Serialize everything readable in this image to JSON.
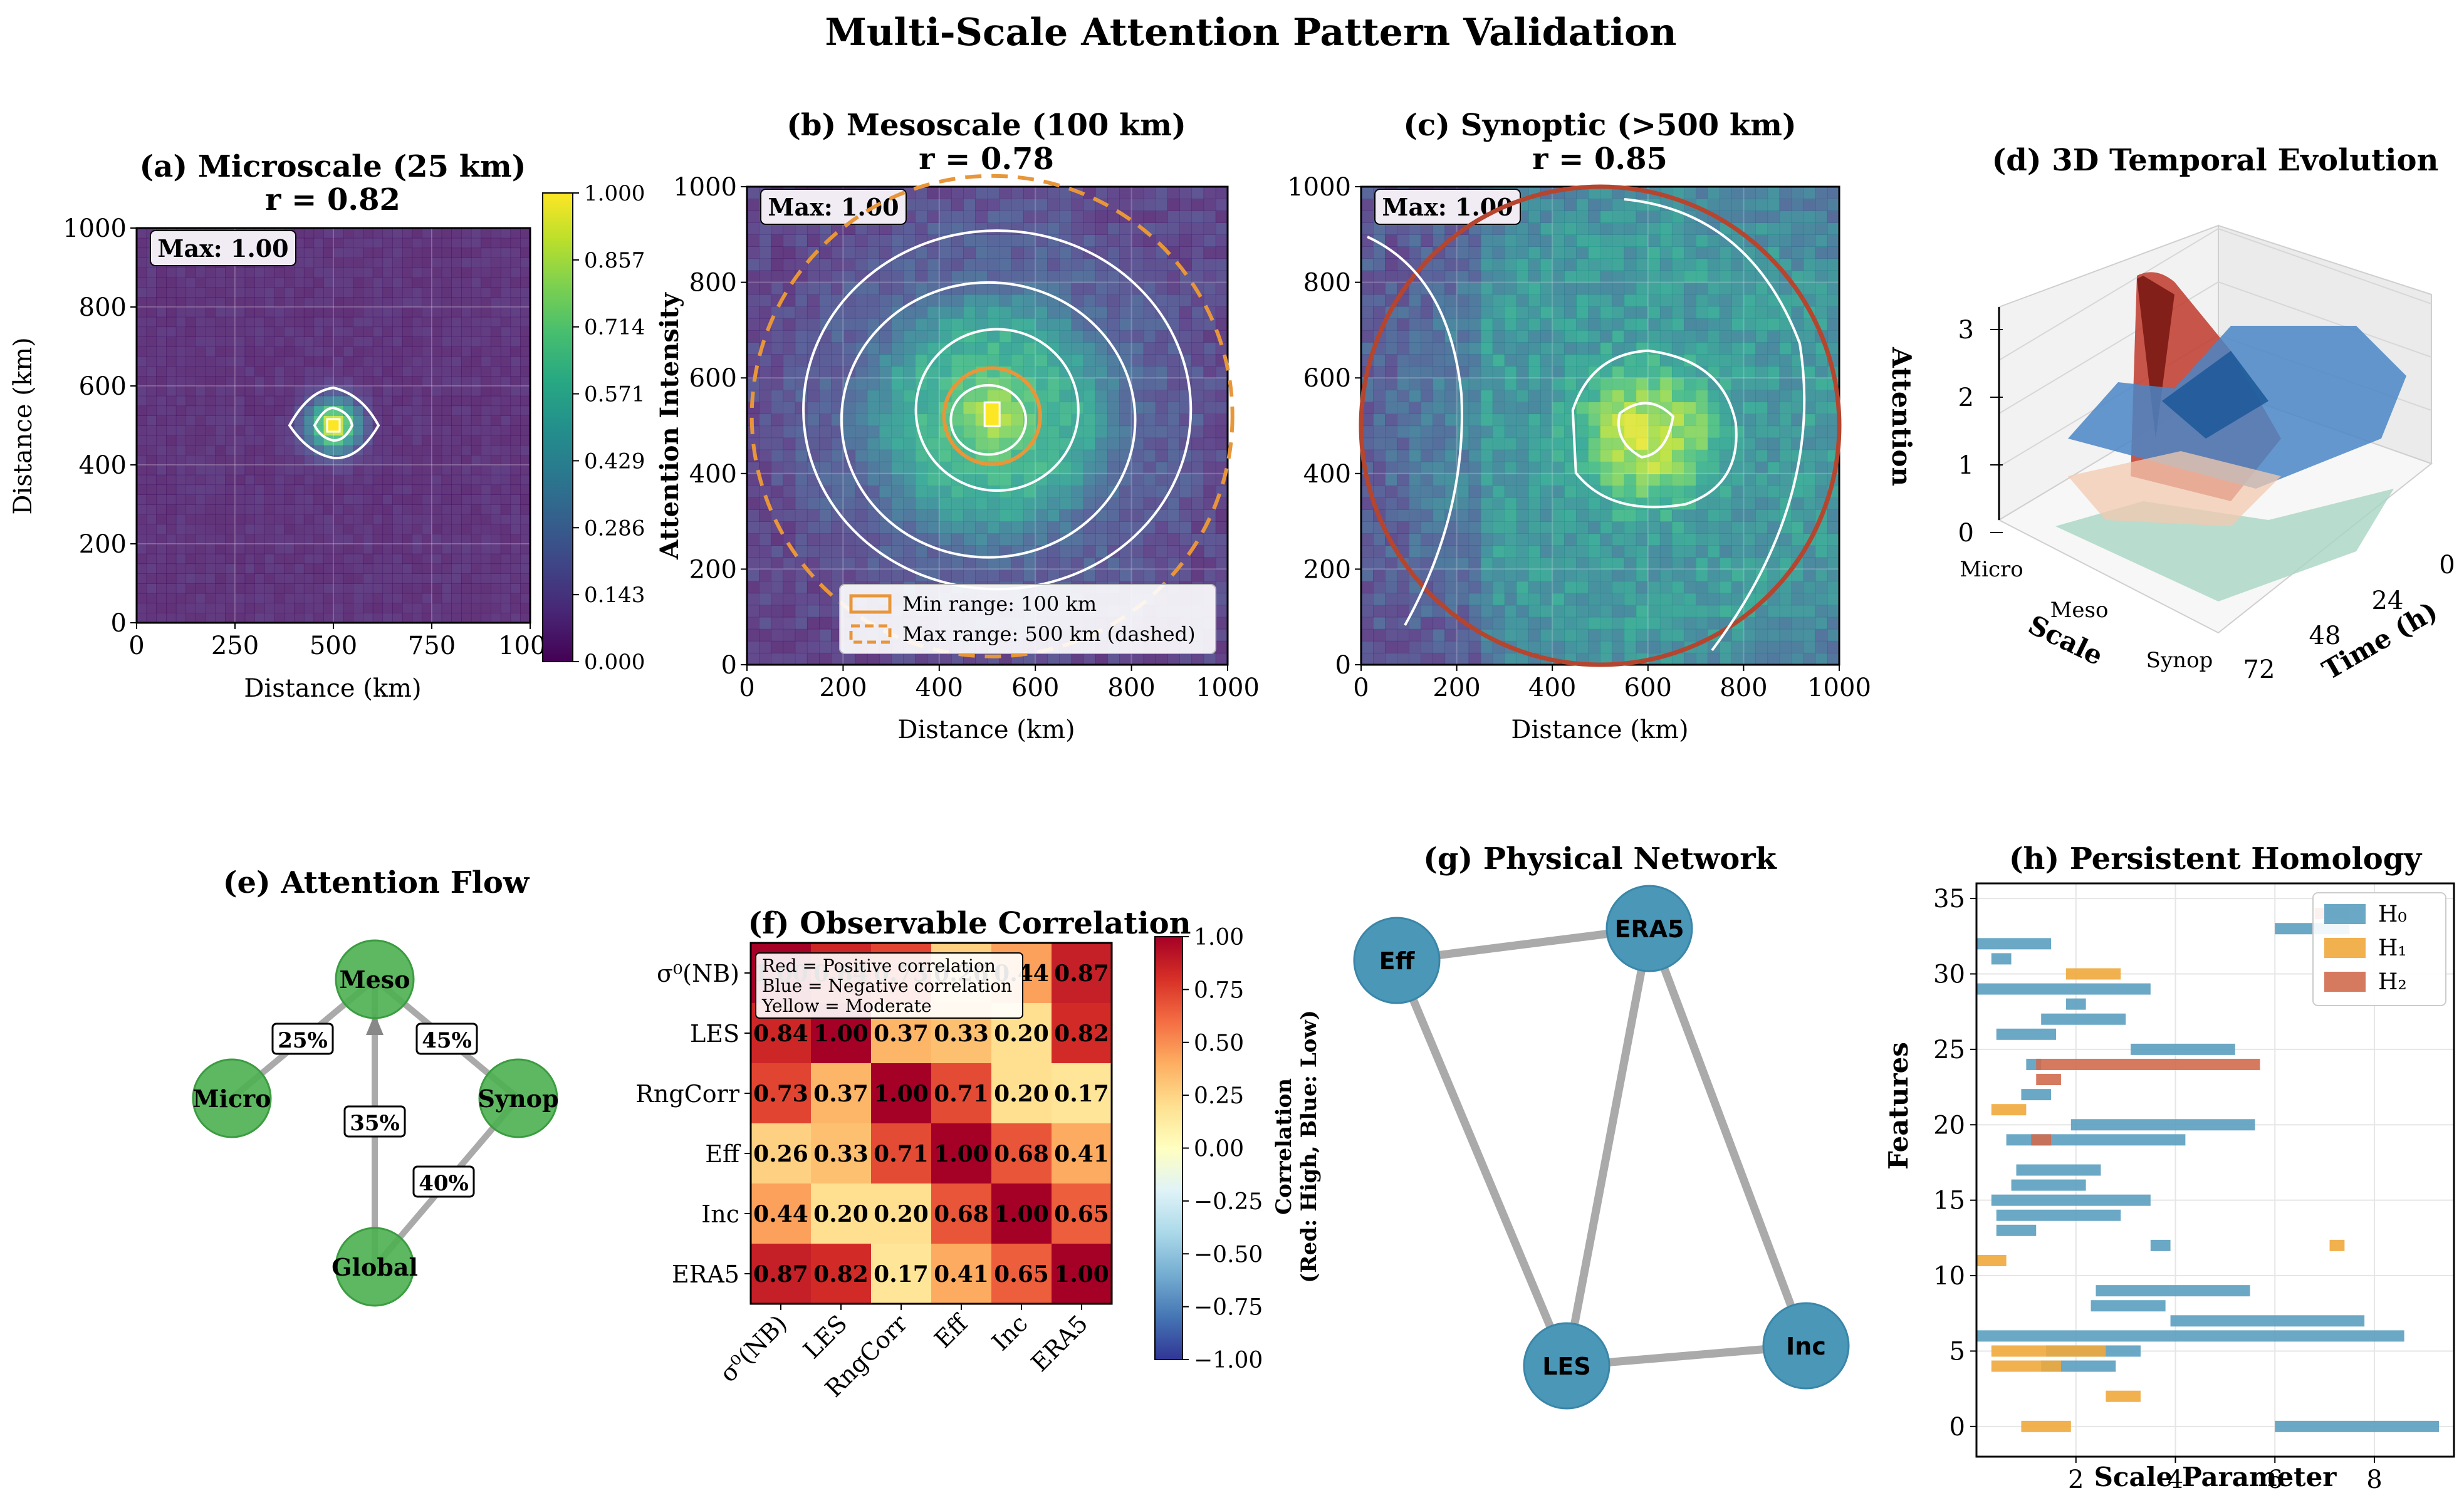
{
  "figure_title": "Multi-Scale Attention Pattern Validation",
  "colors": {
    "green_node": "#4caf50",
    "blue_node": "#4a97b8",
    "orange": "#e8963a",
    "red_circle": "#b5452e",
    "h0": "#5a9fbf",
    "h1": "#f0a83c",
    "h2": "#d06a4e",
    "edge_gray": "#aaaaaa"
  },
  "chart_data": [
    {
      "id": "a",
      "type": "heatmap",
      "title": "(a) Microscale (25 km)",
      "subtitle": "r = 0.82",
      "xlabel": "Distance (km)",
      "ylabel": "Distance (km)",
      "xlim": [
        0,
        1000
      ],
      "ylim": [
        0,
        1000
      ],
      "xticks": [
        "0",
        "250",
        "500",
        "750",
        "1000"
      ],
      "yticks": [
        "0",
        "200",
        "400",
        "600",
        "800",
        "1000"
      ],
      "peak_center": [
        500,
        500
      ],
      "peak_value": 1.0,
      "max_label": "Max: 1.00",
      "colorbar_ticks": [
        "1.000",
        "0.857",
        "0.714",
        "0.571",
        "0.429",
        "0.286",
        "0.143",
        "0.000"
      ],
      "colormap": "viridis",
      "grid": true
    },
    {
      "id": "b",
      "type": "heatmap",
      "title": "(b) Mesoscale (100 km)",
      "subtitle": "r = 0.78",
      "xlabel": "Distance (km)",
      "ylabel": "Attention Intensity",
      "xlim": [
        0,
        1000
      ],
      "ylim": [
        0,
        1000
      ],
      "xticks": [
        "0",
        "200",
        "400",
        "600",
        "800",
        "1000"
      ],
      "yticks": [
        "0",
        "200",
        "400",
        "600",
        "800",
        "1000"
      ],
      "peak_center": [
        510,
        520
      ],
      "max_label": "Max: 1.00",
      "legend": [
        "Min range: 100 km",
        "Max range: 500 km (dashed)"
      ],
      "legend_position": "lower-right",
      "min_range_km": 100,
      "max_range_km": 500,
      "colormap": "viridis"
    },
    {
      "id": "c",
      "type": "heatmap",
      "title": "(c) Synoptic (>500 km)",
      "subtitle": "r = 0.85",
      "xlabel": "Distance (km)",
      "xlim": [
        0,
        1000
      ],
      "ylim": [
        0,
        1000
      ],
      "xticks": [
        "0",
        "200",
        "400",
        "600",
        "800",
        "1000"
      ],
      "yticks": [
        "0",
        "200",
        "400",
        "600",
        "800",
        "1000"
      ],
      "peak_center": [
        600,
        480
      ],
      "max_label": "Max: 1.00",
      "colormap": "viridis"
    },
    {
      "id": "d",
      "type": "area",
      "title": "(d) 3D Temporal Evolution",
      "zlabel": "Attention",
      "xlabel": "Scale",
      "ylabel": "Time (h)",
      "zticks": [
        "0",
        "1",
        "2",
        "3"
      ],
      "scale_ticks": [
        "Micro",
        "Meso",
        "Synop"
      ],
      "time_ticks": [
        "0",
        "24",
        "48",
        "72"
      ]
    },
    {
      "id": "e",
      "type": "network",
      "title": "(e) Attention Flow",
      "nodes": [
        "Meso",
        "Micro",
        "Synop",
        "Global"
      ],
      "edges": [
        {
          "from": "Micro",
          "to": "Meso",
          "label": "25%"
        },
        {
          "from": "Meso",
          "to": "Synop",
          "label": "45%"
        },
        {
          "from": "Global",
          "to": "Meso",
          "label": "35%"
        },
        {
          "from": "Synop",
          "to": "Global",
          "label": "40%"
        }
      ]
    },
    {
      "id": "f",
      "type": "heatmap",
      "title": "(f) Observable Correlation",
      "labels": [
        "σ⁰(NB)",
        "LES",
        "RngCorr",
        "Eff",
        "Inc",
        "ERA5"
      ],
      "matrix": [
        [
          1.0,
          0.84,
          0.73,
          0.26,
          0.44,
          0.87
        ],
        [
          0.84,
          1.0,
          0.37,
          0.33,
          0.2,
          0.82
        ],
        [
          0.73,
          0.37,
          1.0,
          0.71,
          0.2,
          0.17
        ],
        [
          0.26,
          0.33,
          0.71,
          1.0,
          0.68,
          0.41
        ],
        [
          0.44,
          0.2,
          0.2,
          0.68,
          1.0,
          0.65
        ],
        [
          0.87,
          0.82,
          0.17,
          0.41,
          0.65,
          1.0
        ]
      ],
      "note_lines": [
        "Red = Positive correlation",
        "Blue = Negative correlation",
        "Yellow = Moderate"
      ],
      "colorbar_label_1": "Correlation",
      "colorbar_label_2": "(Red: High, Blue: Low)",
      "colorbar_ticks": [
        "1.00",
        "0.75",
        "0.50",
        "0.25",
        "0.00",
        "−0.25",
        "−0.50",
        "−0.75",
        "−1.00"
      ],
      "clim": [
        -1,
        1
      ]
    },
    {
      "id": "g",
      "type": "network",
      "title": "(g) Physical Network",
      "nodes": [
        "Eff",
        "ERA5",
        "LES",
        "Inc"
      ],
      "edges": [
        [
          "Eff",
          "ERA5"
        ],
        [
          "Eff",
          "LES"
        ],
        [
          "ERA5",
          "LES"
        ],
        [
          "ERA5",
          "Inc"
        ],
        [
          "LES",
          "Inc"
        ]
      ]
    },
    {
      "id": "h",
      "type": "bar",
      "title": "(h) Persistent Homology",
      "xlabel": "Scale Parameter",
      "ylabel": "Features",
      "xlim": [
        0,
        9.6
      ],
      "ylim": [
        -2,
        36
      ],
      "xticks": [
        2,
        4,
        6,
        8
      ],
      "yticks": [
        0,
        5,
        10,
        15,
        20,
        25,
        30,
        35
      ],
      "legend": [
        "H₀",
        "H₁",
        "H₂"
      ],
      "legend_position": "top-right",
      "series": [
        {
          "name": "H₀",
          "bars": [
            [
              0,
              6.0,
              9.3
            ],
            [
              4,
              1.3,
              2.8
            ],
            [
              5,
              1.4,
              3.3
            ],
            [
              6,
              0.0,
              8.6
            ],
            [
              7,
              3.9,
              7.8
            ],
            [
              8,
              2.3,
              3.8
            ],
            [
              9,
              2.4,
              5.5
            ],
            [
              12,
              3.5,
              3.9
            ],
            [
              13,
              0.4,
              1.2
            ],
            [
              14,
              0.4,
              2.9
            ],
            [
              15,
              0.3,
              3.5
            ],
            [
              16,
              0.7,
              2.2
            ],
            [
              17,
              0.8,
              2.5
            ],
            [
              19,
              0.6,
              4.2
            ],
            [
              20,
              1.9,
              5.6
            ],
            [
              22,
              0.9,
              1.5
            ],
            [
              24,
              1.0,
              1.3
            ],
            [
              25,
              3.1,
              5.2
            ],
            [
              26,
              0.4,
              1.6
            ],
            [
              27,
              1.3,
              3.0
            ],
            [
              28,
              1.8,
              2.2
            ],
            [
              29,
              0.0,
              3.5
            ],
            [
              31,
              0.3,
              0.7
            ],
            [
              32,
              0.0,
              1.5
            ],
            [
              33,
              6.0,
              7.5
            ]
          ]
        },
        {
          "name": "H₁",
          "bars": [
            [
              0,
              0.9,
              1.9
            ],
            [
              2,
              2.6,
              3.3
            ],
            [
              4,
              0.3,
              1.7
            ],
            [
              5,
              0.3,
              2.6
            ],
            [
              11,
              0.0,
              0.6
            ],
            [
              12,
              7.1,
              7.4
            ],
            [
              21,
              0.3,
              1.0
            ],
            [
              30,
              1.8,
              2.9
            ]
          ]
        },
        {
          "name": "H₂",
          "bars": [
            [
              19,
              1.1,
              1.5
            ],
            [
              23,
              1.2,
              1.7
            ],
            [
              24,
              1.2,
              5.7
            ],
            [
              34,
              6.8,
              7.5
            ]
          ]
        }
      ]
    }
  ]
}
